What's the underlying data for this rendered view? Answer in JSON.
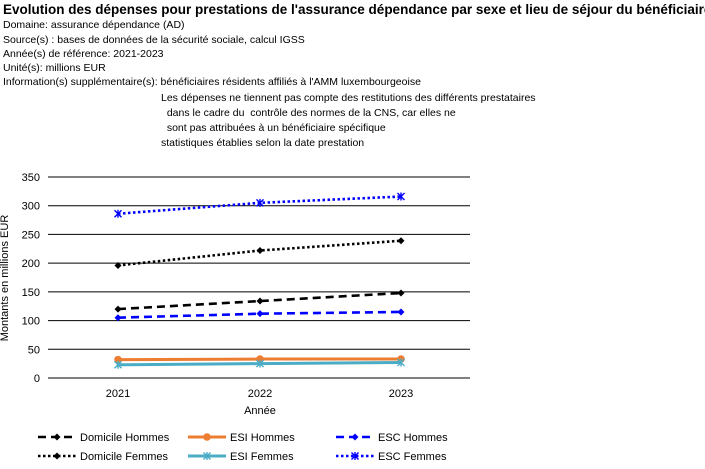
{
  "header": {
    "title": "Evolution des dépenses pour prestations de l'assurance dépendance par sexe et lieu de séjour du bénéficiaire",
    "meta": [
      "Domaine: assurance dépendance (AD)",
      "Source(s) : bases de données de la sécurité sociale, calcul IGSS",
      "Année(s) de référence: 2021-2023",
      "Unité(s): millions EUR",
      "Information(s) supplémentaire(s): bénéficiaires résidents affiliés à l'AMM luxembourgeoise"
    ],
    "notes": [
      "Les dépenses ne tiennent pas compte des restitutions des différents prestataires",
      "  dans le cadre du  contrôle des normes de la CNS, car elles ne",
      "  sont pas attribuées à un bénéficiaire spécifique",
      "statistiques établies selon la date prestation"
    ]
  },
  "chart_data": {
    "type": "line",
    "title": "",
    "xlabel": "Année",
    "ylabel": "Montants en millions EUR",
    "categories": [
      "2021",
      "2022",
      "2023"
    ],
    "ylim": [
      0,
      350
    ],
    "yticks": [
      0,
      50,
      100,
      150,
      200,
      250,
      300,
      350
    ],
    "grid": true,
    "legend_position": "bottom",
    "series": [
      {
        "name": "Domicile Hommes",
        "values": [
          120,
          134,
          148
        ],
        "color": "#000000",
        "dash": "long",
        "marker": "diamond"
      },
      {
        "name": "ESI Hommes",
        "values": [
          32,
          33,
          33
        ],
        "color": "#ED7D31",
        "dash": "solid",
        "marker": "circle"
      },
      {
        "name": "ESC Hommes",
        "values": [
          105,
          112,
          115
        ],
        "color": "#0000FF",
        "dash": "long",
        "marker": "diamond"
      },
      {
        "name": "Domicile Femmes",
        "values": [
          196,
          222,
          239
        ],
        "color": "#000000",
        "dash": "dot",
        "marker": "diamond"
      },
      {
        "name": "ESI Femmes",
        "values": [
          23,
          25,
          27
        ],
        "color": "#4BACC6",
        "dash": "solid",
        "marker": "cross"
      },
      {
        "name": "ESC Femmes",
        "values": [
          286,
          305,
          316
        ],
        "color": "#0000FF",
        "dash": "dot",
        "marker": "cross"
      }
    ]
  }
}
